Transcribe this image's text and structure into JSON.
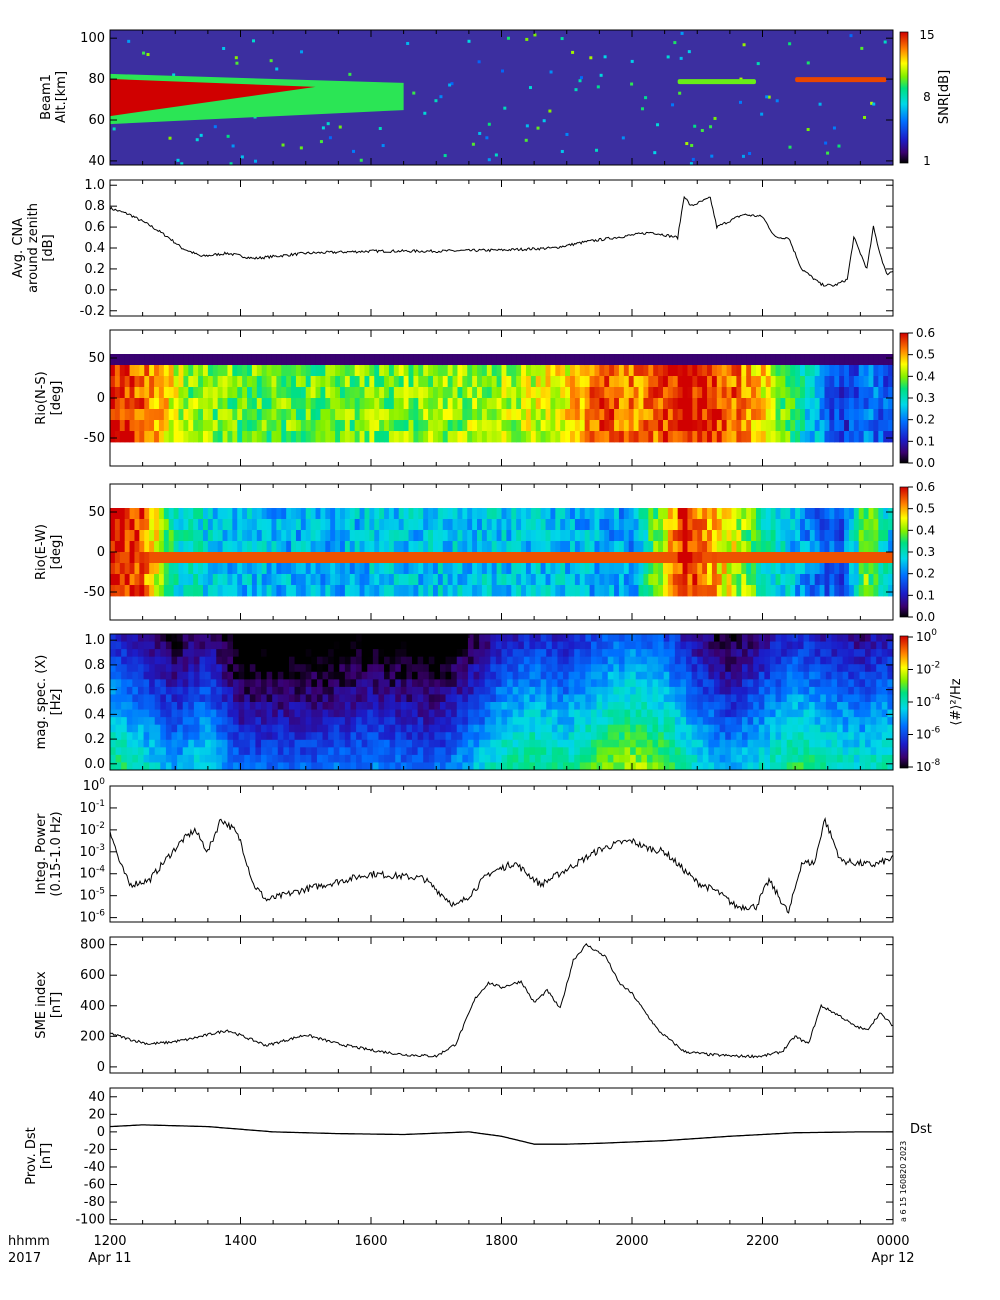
{
  "chart_data": [
    {
      "type": "heatmap",
      "ylabel": [
        "Beam1",
        "Alt.[km]"
      ],
      "yticks": [
        "40",
        "60",
        "80",
        "100"
      ],
      "ylim": [
        38,
        104
      ],
      "xlim": [
        0,
        12
      ],
      "colorbar": {
        "label": "SNR[dB]",
        "ticks": [
          "1",
          "8",
          "15"
        ],
        "range": [
          1,
          15
        ]
      },
      "features": [
        {
          "name": "D-region echo layer",
          "x_range": [
            0.0,
            4.5
          ],
          "alt_range": [
            58,
            84
          ],
          "snr_db": 15
        },
        {
          "name": "thin layer",
          "x_range": [
            8.7,
            9.9
          ],
          "alt": 79,
          "snr_db": 10
        },
        {
          "name": "thin layer",
          "x_range": [
            10.5,
            11.9
          ],
          "alt": 80,
          "snr_db": 14
        }
      ]
    },
    {
      "type": "line",
      "ylabel": [
        "Avg. CNA",
        "around zenith",
        "[dB]"
      ],
      "yticks": [
        "-0.2",
        "0.0",
        "0.2",
        "0.4",
        "0.6",
        "0.8",
        "1.0"
      ],
      "ylim": [
        -0.25,
        1.05
      ],
      "x": [
        0,
        0.3,
        0.6,
        0.9,
        1.1,
        1.4,
        1.8,
        2.2,
        3.0,
        4.0,
        5.0,
        6.0,
        6.8,
        7.3,
        8.3,
        8.7,
        8.8,
        8.9,
        9.2,
        9.3,
        9.7,
        10.0,
        10.2,
        10.4,
        10.6,
        10.9,
        11.1,
        11.3,
        11.4,
        11.6,
        11.7,
        11.8,
        11.9,
        12.0
      ],
      "y": [
        0.78,
        0.72,
        0.62,
        0.5,
        0.4,
        0.32,
        0.35,
        0.3,
        0.35,
        0.37,
        0.37,
        0.38,
        0.4,
        0.46,
        0.55,
        0.5,
        0.9,
        0.8,
        0.88,
        0.6,
        0.72,
        0.7,
        0.5,
        0.5,
        0.2,
        0.05,
        0.04,
        0.1,
        0.5,
        0.2,
        0.6,
        0.35,
        0.15,
        0.18
      ]
    },
    {
      "type": "heatmap",
      "ylabel": [
        "Rio(N-S)",
        "[deg]"
      ],
      "yticks": [
        "-50",
        "0",
        "50"
      ],
      "ylim": [
        -85,
        85
      ],
      "xlim": [
        0,
        12
      ],
      "colorbar": {
        "ticks": [
          "0.0",
          "0.1",
          "0.2",
          "0.3",
          "0.4",
          "0.5",
          "0.6"
        ],
        "range": [
          0,
          0.6
        ]
      },
      "profile_x": [
        0,
        0.4,
        0.8,
        1.2,
        2.0,
        3.0,
        4.0,
        5.0,
        6.0,
        7.0,
        7.5,
        8.2,
        8.8,
        9.5,
        10.1,
        10.8,
        11.2,
        11.6,
        12.0
      ],
      "profile_value": [
        0.6,
        0.55,
        0.48,
        0.4,
        0.38,
        0.38,
        0.39,
        0.4,
        0.41,
        0.46,
        0.55,
        0.52,
        0.6,
        0.55,
        0.45,
        0.25,
        0.12,
        0.2,
        0.15
      ]
    },
    {
      "type": "heatmap",
      "ylabel": [
        "Rio(E-W)",
        "[deg]"
      ],
      "yticks": [
        "-50",
        "0",
        "50"
      ],
      "ylim": [
        -85,
        85
      ],
      "xlim": [
        0,
        12
      ],
      "colorbar": {
        "ticks": [
          "0.0",
          "0.1",
          "0.2",
          "0.3",
          "0.4",
          "0.5",
          "0.6"
        ],
        "range": [
          0,
          0.6
        ]
      },
      "profile_x": [
        0,
        0.5,
        1.0,
        2.0,
        3.0,
        4.0,
        5.0,
        6.0,
        7.0,
        8.0,
        8.8,
        9.5,
        10.1,
        10.8,
        11.2,
        11.6,
        12.0
      ],
      "profile_value": [
        0.6,
        0.55,
        0.3,
        0.25,
        0.24,
        0.25,
        0.26,
        0.26,
        0.25,
        0.22,
        0.58,
        0.45,
        0.3,
        0.2,
        0.15,
        0.4,
        0.25
      ]
    },
    {
      "type": "heatmap",
      "ylabel": [
        "mag. spec. (X)",
        "[Hz]"
      ],
      "yticks": [
        "0.0",
        "0.2",
        "0.4",
        "0.6",
        "0.8",
        "1.0"
      ],
      "ylim": [
        -0.05,
        1.05
      ],
      "xlim": [
        0,
        12
      ],
      "colorbar": {
        "label": "⟨#⟩²/Hz",
        "ticks": [
          "10^-8",
          "10^-6",
          "10^-4",
          "10^-2",
          "10^0"
        ],
        "log_range": [
          -9,
          1
        ]
      },
      "profile_x": [
        0,
        0.5,
        1.0,
        1.5,
        2.0,
        3.0,
        4.0,
        5.0,
        5.5,
        6.0,
        6.5,
        7.0,
        7.5,
        8.0,
        8.5,
        9.0,
        9.5,
        10.0,
        10.5,
        11.0,
        11.5,
        12.0
      ],
      "profile_log_power": [
        -3,
        -4,
        -5,
        -4,
        -6,
        -6,
        -5.5,
        -6,
        -5,
        -3.5,
        -3,
        -3.5,
        -2.5,
        -2,
        -2.5,
        -4,
        -5,
        -4,
        -3,
        -3.5,
        -4,
        -3.5
      ]
    },
    {
      "type": "line",
      "ylabel": [
        "Integ. Power",
        "(0.15-1.0 Hz)"
      ],
      "yticks": [
        "10^-6",
        "10^-5",
        "10^-4",
        "10^-3",
        "10^-2",
        "10^-1",
        "10^0"
      ],
      "log_scale": true,
      "ylim": [
        -6.2,
        0
      ],
      "x": [
        0,
        0.15,
        0.3,
        0.6,
        0.9,
        1.1,
        1.3,
        1.5,
        1.7,
        1.9,
        2.0,
        2.2,
        2.4,
        3.0,
        4.0,
        4.8,
        5.3,
        5.5,
        5.8,
        6.2,
        6.6,
        7.0,
        7.5,
        7.8,
        8.0,
        8.2,
        8.5,
        9.0,
        9.3,
        9.6,
        9.9,
        10.1,
        10.4,
        10.6,
        10.8,
        10.95,
        11.2,
        11.4,
        11.7,
        12.0
      ],
      "y": [
        -2.0,
        -3.5,
        -4.5,
        -4.3,
        -3.2,
        -2.5,
        -2.0,
        -3.0,
        -1.5,
        -2.0,
        -2.5,
        -4.5,
        -5.2,
        -4.7,
        -4.0,
        -4.2,
        -5.5,
        -5.0,
        -4.0,
        -3.5,
        -4.5,
        -3.8,
        -2.9,
        -2.6,
        -2.5,
        -2.8,
        -3.0,
        -4.4,
        -4.8,
        -5.5,
        -5.5,
        -4.3,
        -5.8,
        -3.5,
        -3.5,
        -1.5,
        -3.4,
        -3.5,
        -3.6,
        -3.3
      ]
    },
    {
      "type": "line",
      "ylabel": [
        "SME index",
        "[nT]"
      ],
      "yticks": [
        "0",
        "200",
        "400",
        "600",
        "800"
      ],
      "ylim": [
        -40,
        850
      ],
      "x": [
        0,
        0.3,
        0.6,
        0.9,
        1.2,
        1.8,
        2.4,
        3.0,
        3.5,
        4.0,
        4.5,
        5.0,
        5.3,
        5.6,
        5.8,
        6.0,
        6.3,
        6.5,
        6.7,
        6.9,
        7.1,
        7.3,
        7.6,
        7.8,
        8.0,
        8.2,
        8.4,
        8.8,
        9.2,
        9.6,
        10.0,
        10.3,
        10.5,
        10.7,
        10.9,
        11.2,
        11.4,
        11.6,
        11.8,
        12.0
      ],
      "y": [
        220,
        180,
        150,
        160,
        180,
        240,
        140,
        210,
        150,
        110,
        80,
        70,
        150,
        450,
        550,
        520,
        560,
        420,
        500,
        380,
        700,
        800,
        720,
        550,
        480,
        360,
        240,
        100,
        80,
        70,
        70,
        100,
        200,
        150,
        400,
        330,
        270,
        240,
        350,
        270
      ]
    },
    {
      "type": "line",
      "ylabel": [
        "Prov. Dst",
        "[nT]"
      ],
      "yticks": [
        "-100",
        "-80",
        "-60",
        "-40",
        "-20",
        "0",
        "20",
        "40"
      ],
      "ylim": [
        -105,
        50
      ],
      "legend": "Dst",
      "x": [
        0,
        0.5,
        1.5,
        2.5,
        3.5,
        4.5,
        5.5,
        6.0,
        6.5,
        7.0,
        7.5,
        8.5,
        9.5,
        10.5,
        11.5,
        12.0
      ],
      "y": [
        6,
        8,
        6,
        0,
        -2,
        -3,
        0,
        -5,
        -14,
        -14,
        -13,
        -10,
        -5,
        -1,
        0,
        0
      ]
    }
  ],
  "x_axis": {
    "tick_labels": [
      "1200",
      "1400",
      "1600",
      "1800",
      "2000",
      "2200",
      "0000"
    ],
    "left_label_1": "hhmm",
    "left_label_2": "2017",
    "date_start": "Apr 11",
    "date_end": "Apr 12"
  },
  "stamp": "a  6 15 160820 2023"
}
